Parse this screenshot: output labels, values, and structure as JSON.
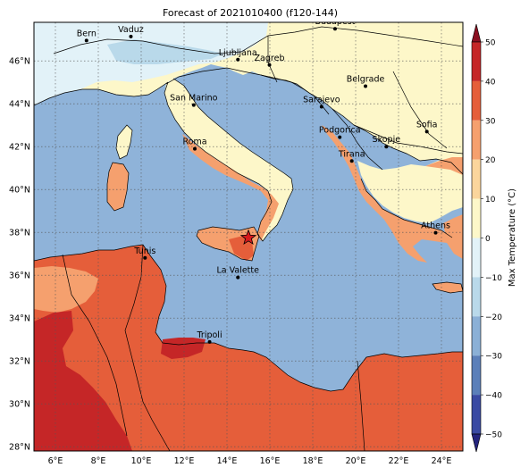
{
  "title": "Forecast of 2021010400 (f120-144)",
  "colorbar": {
    "label": "Max Temperature (°C)",
    "ticks": [
      "50",
      "40",
      "30",
      "20",
      "10",
      "0",
      "−10",
      "−20",
      "−30",
      "−40",
      "−50"
    ],
    "colors": {
      "n50": "#24247e",
      "n40": "#3a4aa3",
      "n30": "#5b7fb9",
      "n20": "#8bb0d6",
      "n10": "#b9d9ea",
      "n0": "#e2f2f8",
      "p0": "#fdf7c9",
      "p10": "#fbd59c",
      "p20": "#f5a06e",
      "p30": "#e55e3a",
      "p40": "#c52627",
      "p50": "#8a0f20"
    }
  },
  "axes": {
    "lon_ticks": [
      "6°E",
      "8°E",
      "10°E",
      "12°E",
      "14°E",
      "16°E",
      "18°E",
      "20°E",
      "22°E",
      "24°E"
    ],
    "lat_ticks": [
      "46°N",
      "44°N",
      "42°N",
      "40°N",
      "38°N",
      "36°N",
      "34°N",
      "32°N",
      "30°N",
      "28°N"
    ],
    "extent": {
      "lon": [
        5,
        25
      ],
      "lat": [
        27.8,
        47.8
      ]
    }
  },
  "cities": [
    {
      "name": "Bern",
      "lon": 7.45,
      "lat": 46.95
    },
    {
      "name": "Vaduz",
      "lon": 9.52,
      "lat": 47.14
    },
    {
      "name": "Budapest",
      "lon": 19.04,
      "lat": 47.5
    },
    {
      "name": "Ljubljana",
      "lon": 14.51,
      "lat": 46.06
    },
    {
      "name": "Zagreb",
      "lon": 15.98,
      "lat": 45.81
    },
    {
      "name": "Belgrade",
      "lon": 20.46,
      "lat": 44.82
    },
    {
      "name": "San Marino",
      "lon": 12.45,
      "lat": 43.94
    },
    {
      "name": "Sarajevo",
      "lon": 18.41,
      "lat": 43.86
    },
    {
      "name": "Sofia",
      "lon": 23.32,
      "lat": 42.7
    },
    {
      "name": "Roma",
      "lon": 12.5,
      "lat": 41.9
    },
    {
      "name": "Podgorica",
      "lon": 19.26,
      "lat": 42.44
    },
    {
      "name": "Skopje",
      "lon": 21.43,
      "lat": 42.0
    },
    {
      "name": "Tirana",
      "lon": 19.82,
      "lat": 41.33
    },
    {
      "name": "Athens",
      "lon": 23.73,
      "lat": 37.98
    },
    {
      "name": "Tunis",
      "lon": 10.18,
      "lat": 36.81
    },
    {
      "name": "La Valette",
      "lon": 14.51,
      "lat": 35.9
    },
    {
      "name": "Tripoli",
      "lon": 13.19,
      "lat": 32.89
    }
  ],
  "marker": {
    "symbol": "star",
    "lon": 15.0,
    "lat": 37.75,
    "color": "#d7191c"
  },
  "colors": {
    "sea": "#8fb3d9",
    "grid": "#555555",
    "border": "#000000"
  }
}
